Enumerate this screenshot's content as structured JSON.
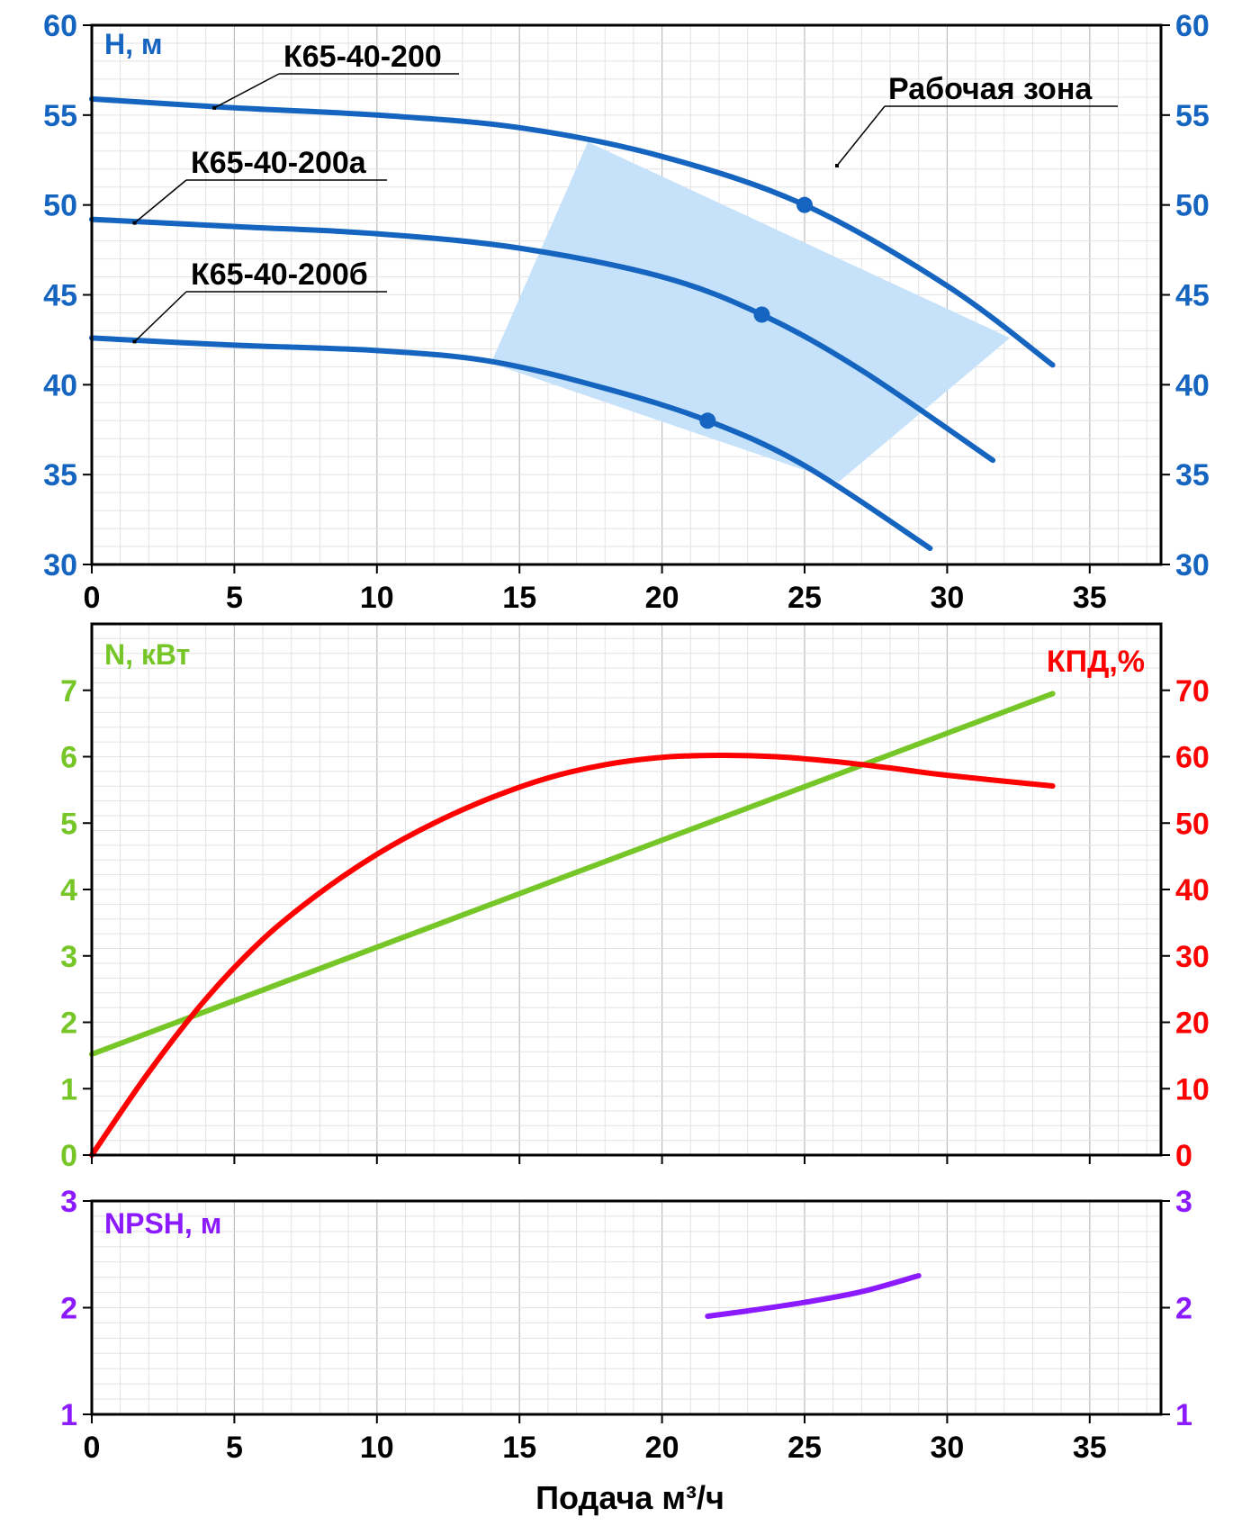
{
  "chart_data": [
    {
      "type": "line",
      "ylabel": "H, м",
      "xlim": [
        0,
        37.5
      ],
      "ylim": [
        30,
        60
      ],
      "x_ticks": [
        "0",
        "5",
        "10",
        "15",
        "20",
        "25",
        "30",
        "35"
      ],
      "y_ticks": [
        "30",
        "35",
        "40",
        "45",
        "50",
        "55",
        "60"
      ],
      "grid": true,
      "colors": {
        "curve": "#1565c0",
        "zone_fill": "#c6e1fa",
        "tick_text": "#1565c0",
        "label_text": "#000000"
      },
      "zone_label": "Рабочая зона",
      "working_zone": [
        [
          17.4,
          53.5
        ],
        [
          32.2,
          42.6
        ],
        [
          26.2,
          34.6
        ],
        [
          14.0,
          41.2
        ]
      ],
      "series": [
        {
          "name": "К65-40-200",
          "x": [
            0,
            5,
            10,
            15,
            20,
            25,
            30,
            33.7
          ],
          "y": [
            55.9,
            55.4,
            55.0,
            54.3,
            52.7,
            50.0,
            45.5,
            41.1
          ],
          "marker": {
            "x": 25.0,
            "y": 50.0
          }
        },
        {
          "name": "К65-40-200а",
          "x": [
            0,
            5,
            10,
            15,
            20,
            23.5,
            27,
            31.6
          ],
          "y": [
            49.2,
            48.8,
            48.4,
            47.6,
            46.0,
            43.9,
            40.8,
            35.8
          ],
          "marker": {
            "x": 23.5,
            "y": 43.9
          }
        },
        {
          "name": "К65-40-200б",
          "x": [
            0,
            5,
            10,
            14,
            18,
            21.6,
            25,
            29.4
          ],
          "y": [
            42.6,
            42.2,
            41.9,
            41.3,
            39.8,
            38.0,
            35.5,
            30.9
          ],
          "marker": {
            "x": 21.6,
            "y": 38.0
          }
        }
      ]
    },
    {
      "type": "line",
      "ylabel_left": "N, кВт",
      "ylabel_right": "КПД,%",
      "xlim": [
        0,
        37.5
      ],
      "ylim_left": [
        0,
        8
      ],
      "ylim_right": [
        0,
        80
      ],
      "x_ticks": [
        "0",
        "5",
        "10",
        "15",
        "20",
        "25",
        "30",
        "35"
      ],
      "y_ticks_left": [
        "0",
        "1",
        "2",
        "3",
        "4",
        "5",
        "6",
        "7"
      ],
      "y_ticks_right": [
        "0",
        "10",
        "20",
        "30",
        "40",
        "50",
        "60",
        "70"
      ],
      "grid": true,
      "colors": {
        "power": "#76c627",
        "efficiency": "#ff0000"
      },
      "series": [
        {
          "name": "N, кВт",
          "axis": "left",
          "x": [
            0,
            33.7
          ],
          "y": [
            1.52,
            6.95
          ]
        },
        {
          "name": "КПД,%",
          "axis": "right",
          "x": [
            0,
            2,
            4,
            6,
            8,
            10,
            12,
            14,
            16,
            18,
            20,
            22,
            24,
            26,
            28,
            30,
            33.7
          ],
          "y": [
            0,
            12.5,
            23.5,
            32.5,
            39.5,
            45.3,
            50.0,
            53.8,
            56.8,
            58.8,
            59.9,
            60.2,
            60.0,
            59.3,
            58.3,
            57.2,
            55.6
          ]
        }
      ]
    },
    {
      "type": "line",
      "ylabel": "NPSH, м",
      "xlabel": "Подача м³/ч",
      "xlim": [
        0,
        37.5
      ],
      "ylim": [
        1,
        3
      ],
      "x_ticks": [
        "0",
        "5",
        "10",
        "15",
        "20",
        "25",
        "30",
        "35"
      ],
      "y_ticks": [
        "1",
        "2",
        "3"
      ],
      "grid": true,
      "colors": {
        "npsh": "#8c1aff"
      },
      "series": [
        {
          "name": "NPSH, м",
          "x": [
            21.6,
            23,
            25,
            27,
            29.0
          ],
          "y": [
            1.92,
            1.97,
            2.05,
            2.15,
            2.3
          ]
        }
      ]
    }
  ]
}
